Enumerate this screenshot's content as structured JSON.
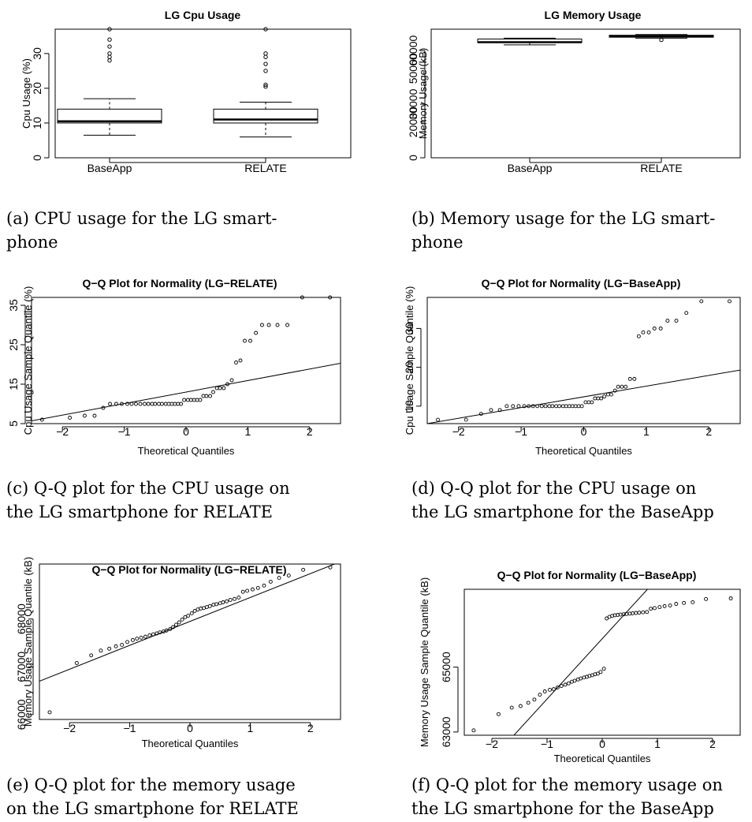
{
  "chart_data": [
    {
      "type": "boxplot",
      "title": "LG Cpu Usage",
      "xlabel": "",
      "ylabel": "Cpu Usage (%)",
      "ylim": [
        0,
        37
      ],
      "yticks": [
        0,
        10,
        20,
        30
      ],
      "grid": false,
      "caption": "(a) CPU usage for the LG smart-phone",
      "caption_lines": [
        "(a)  CPU  usage  for  the  LG  smart-",
        "phone"
      ],
      "categories": [
        "BaseApp",
        "RELATE"
      ],
      "boxes": [
        {
          "name": "BaseApp",
          "whisker_low": 6.5,
          "q1": 10,
          "median": 10.5,
          "q3": 14,
          "whisker_high": 17,
          "outliers": [
            28,
            29,
            30,
            32,
            34,
            37
          ]
        },
        {
          "name": "RELATE",
          "whisker_low": 6,
          "q1": 10,
          "median": 11,
          "q3": 14,
          "whisker_high": 16,
          "outliers": [
            20.5,
            21,
            25,
            27,
            29,
            30,
            37
          ]
        }
      ]
    },
    {
      "type": "boxplot",
      "title": "LG Memory Usage",
      "xlabel": "",
      "ylabel": "Memory Usage (kB)",
      "ylim": [
        0,
        72000
      ],
      "yticks": [
        0,
        20000,
        30000,
        50000,
        60000
      ],
      "grid": false,
      "caption": "(b) Memory usage for the LG smart-phone",
      "caption_lines": [
        "(b) Memory usage for the LG smart-",
        "phone"
      ],
      "categories": [
        "BaseApp",
        "RELATE"
      ],
      "boxes": [
        {
          "name": "BaseApp",
          "whisker_low": 63200,
          "q1": 64500,
          "median": 64700,
          "q3": 66500,
          "whisker_high": 67000,
          "outliers": []
        },
        {
          "name": "RELATE",
          "whisker_low": 67000,
          "q1": 67500,
          "median": 68000,
          "q3": 68600,
          "whisker_high": 69000,
          "outliers": [
            66000
          ]
        }
      ]
    },
    {
      "type": "scatter",
      "title": "Q−Q Plot for Normality (LG−RELATE)",
      "xlabel": "Theoretical Quantiles",
      "ylabel": "Cpu Usage Sample Quantile (%)",
      "xlim": [
        -2.5,
        2.5
      ],
      "ylim": [
        5,
        37
      ],
      "xticks": [
        -2,
        -1,
        0,
        1,
        2
      ],
      "yticks": [
        5,
        15,
        25,
        35
      ],
      "grid": false,
      "caption": "(c) Q-Q plot for the CPU usage on the LG smartphone for RELATE",
      "caption_lines": [
        "(c)  Q-Q  plot  for  the  CPU  usage  on",
        "the LG smartphone for RELATE"
      ],
      "reference_line": [
        [
          -2.5,
          5.7
        ],
        [
          2.5,
          20.3
        ]
      ],
      "series": [
        {
          "x": [
            -2.33,
            -1.88,
            -1.64,
            -1.48,
            -1.34,
            -1.23,
            -1.13,
            -1.04,
            -0.95,
            -0.88,
            -0.81,
            -0.74,
            -0.67,
            -0.61,
            -0.55,
            -0.5,
            -0.44,
            -0.39,
            -0.33,
            -0.28,
            -0.23,
            -0.18,
            -0.13,
            -0.08,
            -0.03,
            0.03,
            0.08,
            0.13,
            0.18,
            0.23,
            0.28,
            0.33,
            0.39,
            0.44,
            0.5,
            0.55,
            0.61,
            0.67,
            0.74,
            0.81,
            0.88,
            0.95,
            1.04,
            1.13,
            1.23,
            1.34,
            1.48,
            1.64,
            1.88,
            2.33
          ],
          "y": [
            6,
            6.5,
            7,
            7,
            9,
            10,
            10,
            10,
            10,
            10,
            10,
            10,
            10,
            10,
            10,
            10,
            10,
            10,
            10,
            10,
            10,
            10,
            10,
            10,
            11,
            11,
            11,
            11,
            11,
            11,
            12,
            12,
            12,
            13,
            14,
            14,
            14,
            15,
            16,
            20.5,
            21,
            26,
            26,
            28,
            30,
            30,
            30,
            30,
            37,
            37
          ]
        }
      ]
    },
    {
      "type": "scatter",
      "title": "Q−Q Plot for Normality (LG−BaseApp)",
      "xlabel": "Theoretical Quantiles",
      "ylabel": "Cpu Usage Sample Quantile (%)",
      "xlim": [
        -2.5,
        2.5
      ],
      "ylim": [
        5.5,
        38
      ],
      "xticks": [
        -2,
        -1,
        0,
        1,
        2
      ],
      "yticks": [
        10,
        20,
        30
      ],
      "grid": false,
      "caption": "(d) Q-Q plot for the CPU usage on the LG smartphone for the BaseApp",
      "caption_lines": [
        "(d)  Q-Q  plot  for  the  CPU  usage  on",
        "the LG smartphone for the BaseApp"
      ],
      "reference_line": [
        [
          -2.5,
          5.5
        ],
        [
          2.5,
          19.3
        ]
      ],
      "series": [
        {
          "x": [
            -2.33,
            -1.88,
            -1.64,
            -1.48,
            -1.34,
            -1.23,
            -1.13,
            -1.04,
            -0.95,
            -0.88,
            -0.81,
            -0.74,
            -0.67,
            -0.61,
            -0.55,
            -0.5,
            -0.44,
            -0.39,
            -0.33,
            -0.28,
            -0.23,
            -0.18,
            -0.13,
            -0.08,
            -0.03,
            0.03,
            0.08,
            0.13,
            0.18,
            0.23,
            0.28,
            0.33,
            0.39,
            0.44,
            0.5,
            0.55,
            0.61,
            0.67,
            0.74,
            0.81,
            0.88,
            0.95,
            1.04,
            1.13,
            1.23,
            1.34,
            1.48,
            1.64,
            1.88,
            2.33
          ],
          "y": [
            6.5,
            6.5,
            8,
            9,
            9,
            10,
            10,
            10,
            10,
            10,
            10,
            10,
            10,
            10,
            10,
            10,
            10,
            10,
            10,
            10,
            10,
            10,
            10,
            10,
            10,
            11,
            11,
            11,
            12,
            12,
            12,
            12.5,
            13,
            13,
            14,
            15,
            15,
            15,
            17,
            17,
            28,
            29,
            29,
            30,
            30,
            32,
            32,
            34,
            37,
            37
          ]
        }
      ]
    },
    {
      "type": "scatter",
      "title": "Q−Q Plot for Normality (LG−RELATE)",
      "xlabel": "Theoretical Quantiles",
      "ylabel": "Memory Usage Sample Quantile (kB)",
      "xlim": [
        -2.5,
        2.5
      ],
      "ylim": [
        65900,
        69150
      ],
      "xticks": [
        -2,
        -1,
        0,
        1,
        2
      ],
      "yticks": [
        66000,
        67000,
        68000
      ],
      "grid": false,
      "caption": "(e) Q-Q plot for the memory usage on the LG smartphone for RELATE",
      "caption_lines": [
        "(e)  Q-Q  plot  for  the  memory  usage",
        "on the LG smartphone for RELATE"
      ],
      "reference_line": [
        [
          -2.5,
          66700
        ],
        [
          2.5,
          69200
        ]
      ],
      "series": [
        {
          "x": [
            -2.33,
            -1.88,
            -1.64,
            -1.48,
            -1.34,
            -1.23,
            -1.13,
            -1.04,
            -0.95,
            -0.88,
            -0.81,
            -0.74,
            -0.67,
            -0.61,
            -0.55,
            -0.5,
            -0.44,
            -0.39,
            -0.33,
            -0.28,
            -0.23,
            -0.18,
            -0.13,
            -0.08,
            -0.03,
            0.03,
            0.08,
            0.13,
            0.18,
            0.23,
            0.28,
            0.33,
            0.39,
            0.44,
            0.5,
            0.55,
            0.61,
            0.67,
            0.74,
            0.81,
            0.88,
            0.95,
            1.04,
            1.13,
            1.23,
            1.34,
            1.48,
            1.64,
            1.88,
            2.33
          ],
          "y": [
            66050,
            67080,
            67240,
            67340,
            67380,
            67430,
            67460,
            67520,
            67560,
            67590,
            67610,
            67630,
            67660,
            67680,
            67700,
            67720,
            67740,
            67760,
            67790,
            67830,
            67880,
            67930,
            67990,
            68040,
            68070,
            68120,
            68170,
            68200,
            68220,
            68230,
            68250,
            68270,
            68300,
            68310,
            68330,
            68350,
            68370,
            68400,
            68420,
            68450,
            68570,
            68590,
            68620,
            68650,
            68700,
            68780,
            68860,
            68910,
            69030,
            69080
          ]
        }
      ]
    },
    {
      "type": "scatter",
      "title": "Q−Q Plot for Normality (LG−BaseApp)",
      "xlabel": "Theoretical Quantiles",
      "ylabel": "Memory Usage Sample Quantile (kB)",
      "xlim": [
        -2.5,
        2.5
      ],
      "ylim": [
        62900,
        67400
      ],
      "xticks": [
        -2,
        -1,
        0,
        1,
        2
      ],
      "yticks": [
        63000,
        65000
      ],
      "grid": false,
      "caption": "(f) Q-Q plot for the memory usage on the LG smartphone for the BaseApp",
      "caption_lines": [
        "(f) Q-Q plot for the memory usage on",
        "the LG smartphone for the BaseApp"
      ],
      "reference_line": [
        [
          -1.6,
          62900
        ],
        [
          0.82,
          67400
        ]
      ],
      "series": [
        {
          "x": [
            -2.33,
            -1.88,
            -1.64,
            -1.48,
            -1.34,
            -1.23,
            -1.13,
            -1.04,
            -0.95,
            -0.88,
            -0.81,
            -0.74,
            -0.67,
            -0.61,
            -0.55,
            -0.5,
            -0.44,
            -0.39,
            -0.33,
            -0.28,
            -0.23,
            -0.18,
            -0.13,
            -0.08,
            -0.03,
            0.03,
            0.08,
            0.13,
            0.18,
            0.23,
            0.28,
            0.33,
            0.39,
            0.44,
            0.5,
            0.55,
            0.61,
            0.67,
            0.74,
            0.81,
            0.88,
            0.95,
            1.04,
            1.13,
            1.23,
            1.34,
            1.48,
            1.64,
            1.88,
            2.33
          ],
          "y": [
            63050,
            63550,
            63750,
            63800,
            63900,
            64000,
            64150,
            64250,
            64300,
            64320,
            64370,
            64420,
            64460,
            64500,
            64550,
            64580,
            64620,
            64650,
            64680,
            64700,
            64730,
            64750,
            64780,
            64800,
            64850,
            64950,
            66500,
            66550,
            66580,
            66600,
            66610,
            66620,
            66630,
            66640,
            66650,
            66660,
            66670,
            66680,
            66690,
            66700,
            66800,
            66820,
            66850,
            66880,
            66900,
            66950,
            66980,
            67000,
            67100,
            67120
          ]
        }
      ]
    }
  ]
}
